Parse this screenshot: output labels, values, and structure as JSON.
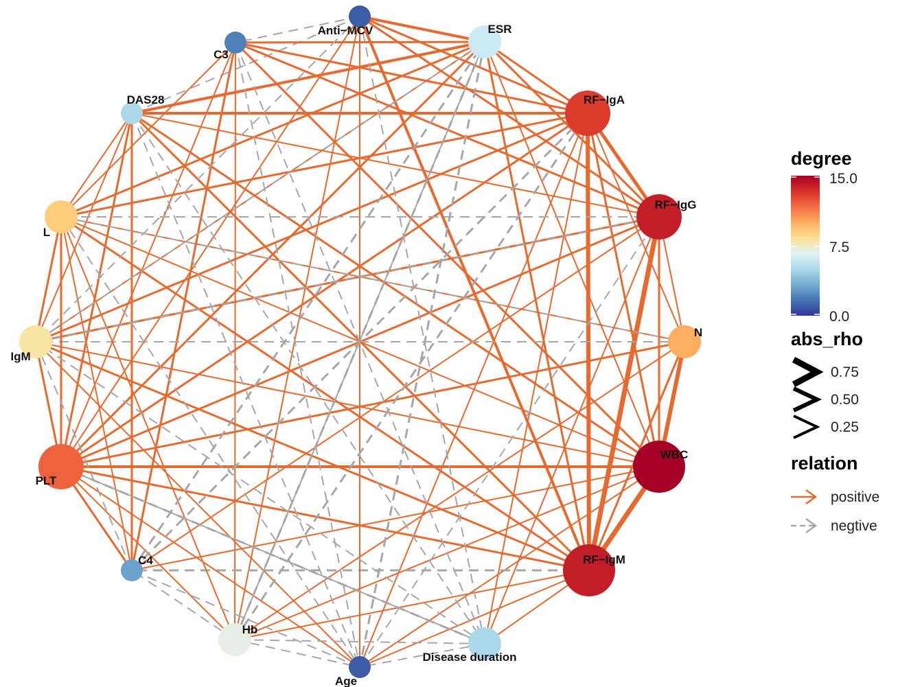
{
  "nodes": [
    {
      "id": "Anti-MCV",
      "label": "Anti−MCV",
      "degree": 1,
      "size": "small"
    },
    {
      "id": "ESR",
      "label": "ESR",
      "degree": 6,
      "size": "medium"
    },
    {
      "id": "RF-IgA",
      "label": "RF−IgA",
      "degree": 13,
      "size": "large"
    },
    {
      "id": "RF-IgG",
      "label": "RF−IgG",
      "degree": 14,
      "size": "large"
    },
    {
      "id": "N",
      "label": "N",
      "degree": 10,
      "size": "medium"
    },
    {
      "id": "WBC",
      "label": "WBC",
      "degree": 15,
      "size": "xlarge"
    },
    {
      "id": "RF-IgM",
      "label": "RF−IgM",
      "degree": 14,
      "size": "xlarge"
    },
    {
      "id": "Disease duration",
      "label": "Disease duration",
      "degree": 5,
      "size": "medium"
    },
    {
      "id": "Age",
      "label": "Age",
      "degree": 1,
      "size": "small"
    },
    {
      "id": "Hb",
      "label": "Hb",
      "degree": 7,
      "size": "medium"
    },
    {
      "id": "C4",
      "label": "C4",
      "degree": 3,
      "size": "small"
    },
    {
      "id": "PLT",
      "label": "PLT",
      "degree": 12,
      "size": "large"
    },
    {
      "id": "IgM",
      "label": "IgM",
      "degree": 8,
      "size": "medium"
    },
    {
      "id": "L",
      "label": "L",
      "degree": 9,
      "size": "medium"
    },
    {
      "id": "DAS28",
      "label": "DAS28",
      "degree": 5,
      "size": "small"
    },
    {
      "id": "C3",
      "label": "C3",
      "degree": 2,
      "size": "small"
    }
  ],
  "legend": {
    "degree_title": "degree",
    "degree_ticks": [
      "15.0",
      "7.5",
      "0.0"
    ],
    "degree_colors": [
      "#313695",
      "#4575b4",
      "#74add1",
      "#abd9e9",
      "#e0f3f8",
      "#fee090",
      "#fdae61",
      "#f46d43",
      "#d73027",
      "#a50026"
    ],
    "rho_title": "abs_rho",
    "rho_ticks": [
      "0.75",
      "0.50",
      "0.25"
    ],
    "relation_title": "relation",
    "relation_positive": "positive",
    "relation_negative": "negtive"
  },
  "colors": {
    "positive_edge": "#e8692e",
    "negative_edge": "#a6a6a6"
  }
}
